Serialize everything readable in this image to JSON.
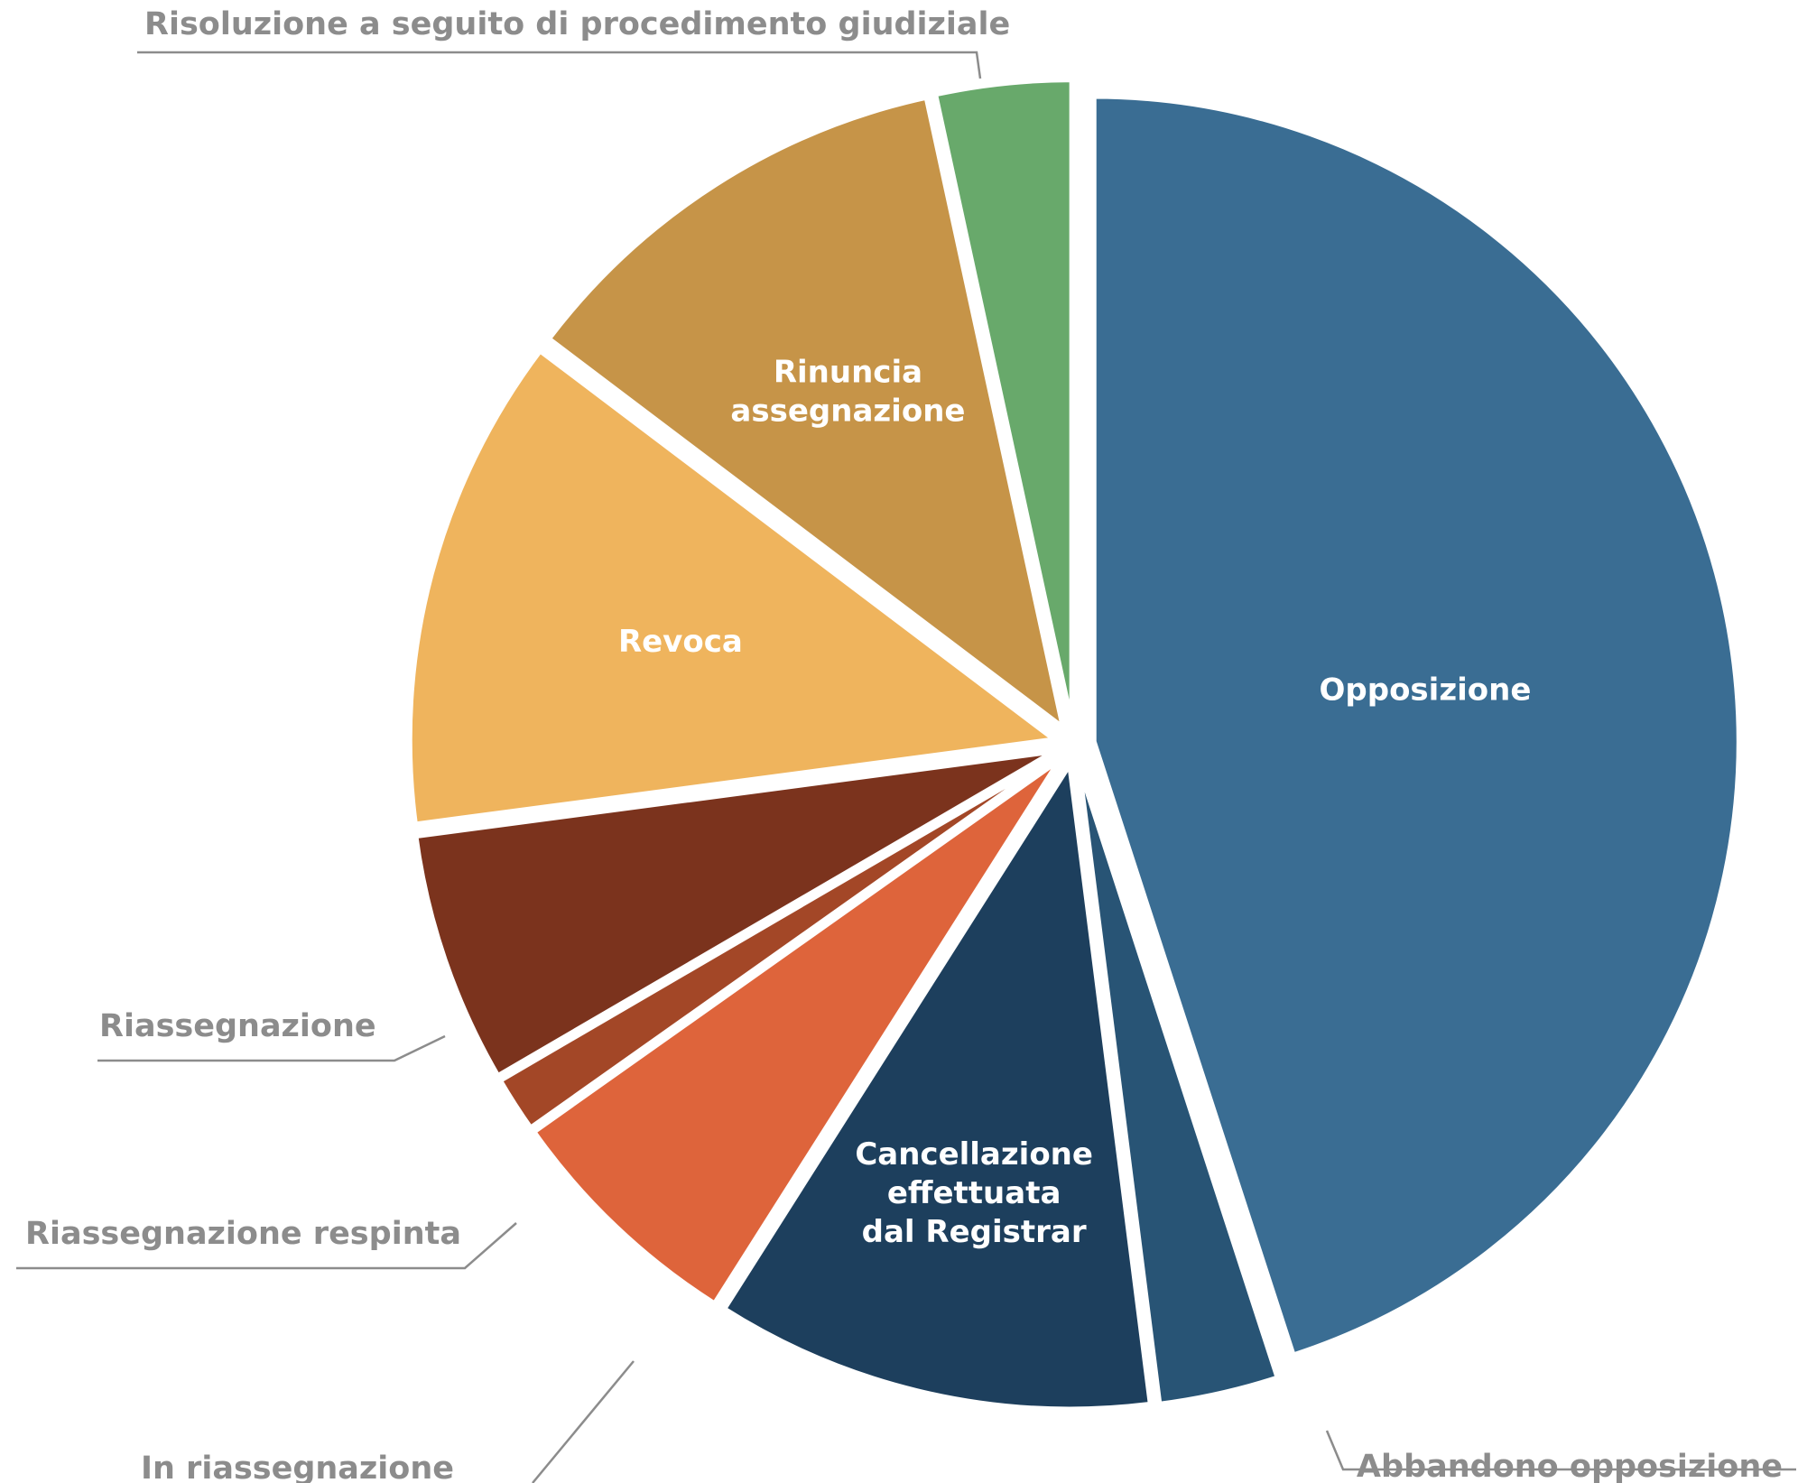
{
  "chart_data": {
    "type": "pie",
    "title": "",
    "slices": [
      {
        "label": "Opposizione",
        "value": 45.0,
        "color": "#3a6d93",
        "label_position": "inside"
      },
      {
        "label": "Abbandono opposizione",
        "value": 3.0,
        "color": "#285475",
        "label_position": "outside"
      },
      {
        "label": "Cancellazione effettuata dal Registrar",
        "lines": [
          "Cancellazione",
          "effettuata",
          "dal Registrar"
        ],
        "value": 11.0,
        "color": "#1d3f5d",
        "label_position": "inside"
      },
      {
        "label": "In riassegnazione",
        "value": 6.2,
        "color": "#de643b",
        "label_position": "outside"
      },
      {
        "label": "Riassegnazione respinta",
        "value": 1.4,
        "color": "#a34727",
        "label_position": "outside"
      },
      {
        "label": "Riassegnazione",
        "value": 6.3,
        "color": "#7b331d",
        "label_position": "outside"
      },
      {
        "label": "Revoca",
        "value": 12.4,
        "color": "#efb45d",
        "label_position": "inside"
      },
      {
        "label": "Rinuncia assegnazione",
        "lines": [
          "Rinuncia",
          "assegnazione"
        ],
        "value": 11.3,
        "color": "#c69448",
        "label_position": "inside"
      },
      {
        "label": "Risoluzione a seguito di procedimento giudiziale",
        "value": 3.4,
        "color": "#68a96b",
        "label_position": "outside"
      }
    ]
  }
}
